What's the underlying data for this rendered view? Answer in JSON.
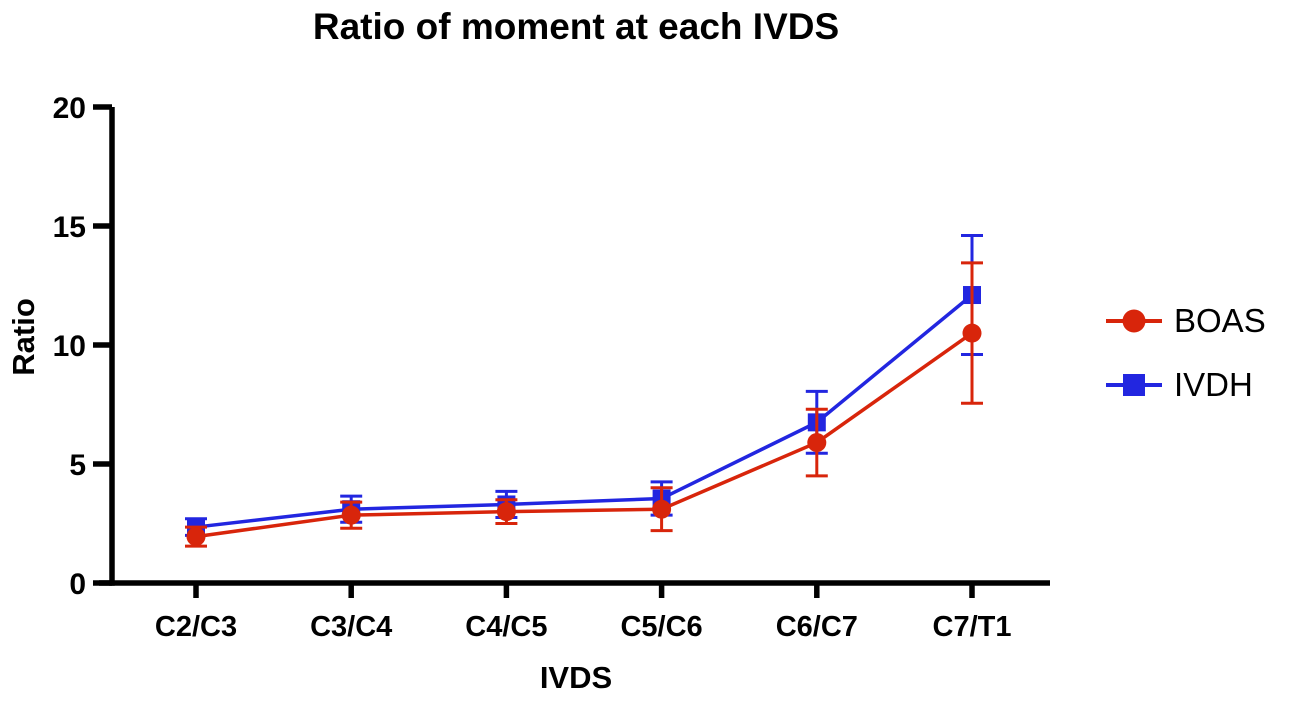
{
  "chart_data": {
    "type": "line",
    "title": "Ratio of moment at each IVDS",
    "xlabel": "IVDS",
    "ylabel": "Ratio",
    "categories": [
      "C2/C3",
      "C3/C4",
      "C4/C5",
      "C5/C6",
      "C6/C7",
      "C7/T1"
    ],
    "ylim": [
      0,
      20
    ],
    "yticks": [
      0,
      5,
      10,
      15,
      20
    ],
    "grid": false,
    "legend_position": "right",
    "error_bars": "symmetric",
    "axis_color": "#000000",
    "series": [
      {
        "name": "BOAS",
        "marker": "circle",
        "color": "#d8250b",
        "values": [
          1.95,
          2.85,
          3.0,
          3.1,
          5.9,
          10.5
        ],
        "errors": [
          0.4,
          0.55,
          0.5,
          0.9,
          1.4,
          2.95
        ]
      },
      {
        "name": "IVDH",
        "marker": "square",
        "color": "#2226e0",
        "values": [
          2.35,
          3.1,
          3.3,
          3.55,
          6.75,
          12.1
        ],
        "errors": [
          0.35,
          0.55,
          0.55,
          0.7,
          1.3,
          2.5
        ]
      }
    ]
  }
}
